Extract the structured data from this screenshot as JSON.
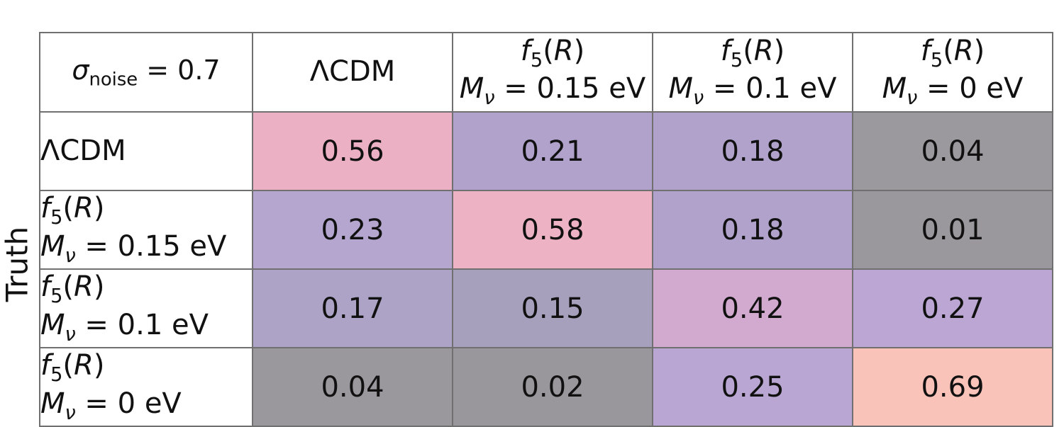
{
  "figure": {
    "truth_axis_label": "Truth",
    "border_color": "#707070",
    "text_color": "#111111",
    "background": "#ffffff"
  },
  "corner": {
    "lines": [
      [
        {
          "t": "σ",
          "i": true
        },
        {
          "t": "noise",
          "sub": true
        },
        {
          "t": " = 0.7"
        }
      ]
    ]
  },
  "columns": [
    {
      "id": "lcdm",
      "lines": [
        [
          {
            "t": "ΛCDM"
          }
        ]
      ]
    },
    {
      "id": "f5r-mnu-0.15ev",
      "lines": [
        [
          {
            "t": "f",
            "i": true
          },
          {
            "t": "5",
            "sub": true
          },
          {
            "t": "("
          },
          {
            "t": "R",
            "i": true
          },
          {
            "t": ")"
          }
        ],
        [
          {
            "t": "M",
            "i": true
          },
          {
            "t": "ν",
            "sub": true,
            "i": true
          },
          {
            "t": " = 0.15 eV"
          }
        ]
      ]
    },
    {
      "id": "f5r-mnu-0.1ev",
      "lines": [
        [
          {
            "t": "f",
            "i": true
          },
          {
            "t": "5",
            "sub": true
          },
          {
            "t": "("
          },
          {
            "t": "R",
            "i": true
          },
          {
            "t": ")"
          }
        ],
        [
          {
            "t": "M",
            "i": true
          },
          {
            "t": "ν",
            "sub": true,
            "i": true
          },
          {
            "t": " = 0.1 eV"
          }
        ]
      ]
    },
    {
      "id": "f5r-mnu-0ev",
      "lines": [
        [
          {
            "t": "f",
            "i": true
          },
          {
            "t": "5",
            "sub": true
          },
          {
            "t": "("
          },
          {
            "t": "R",
            "i": true
          },
          {
            "t": ")"
          }
        ],
        [
          {
            "t": "M",
            "i": true
          },
          {
            "t": "ν",
            "sub": true,
            "i": true
          },
          {
            "t": " = 0 eV"
          }
        ]
      ]
    }
  ],
  "rows": [
    {
      "label": {
        "lines": [
          [
            {
              "t": "ΛCDM"
            }
          ]
        ]
      },
      "cells": [
        {
          "value": "0.56",
          "bg": "#ecb0c4"
        },
        {
          "value": "0.21",
          "bg": "#b1a2cc"
        },
        {
          "value": "0.18",
          "bg": "#b0a2cb"
        },
        {
          "value": "0.04",
          "bg": "#9b989e"
        }
      ]
    },
    {
      "label": {
        "lines": [
          [
            {
              "t": "f",
              "i": true
            },
            {
              "t": "5",
              "sub": true
            },
            {
              "t": "("
            },
            {
              "t": "R",
              "i": true
            },
            {
              "t": ")"
            }
          ],
          [
            {
              "t": "M",
              "i": true
            },
            {
              "t": "ν",
              "sub": true,
              "i": true
            },
            {
              "t": " = 0.15 eV"
            }
          ]
        ]
      },
      "cells": [
        {
          "value": "0.23",
          "bg": "#b5a6cf"
        },
        {
          "value": "0.58",
          "bg": "#eeb2c5"
        },
        {
          "value": "0.18",
          "bg": "#b0a2cb"
        },
        {
          "value": "0.01",
          "bg": "#9a979d"
        }
      ]
    },
    {
      "label": {
        "lines": [
          [
            {
              "t": "f",
              "i": true
            },
            {
              "t": "5",
              "sub": true
            },
            {
              "t": "("
            },
            {
              "t": "R",
              "i": true
            },
            {
              "t": ")"
            }
          ],
          [
            {
              "t": "M",
              "i": true
            },
            {
              "t": "ν",
              "sub": true,
              "i": true
            },
            {
              "t": " = 0.1 eV"
            }
          ]
        ]
      },
      "cells": [
        {
          "value": "0.17",
          "bg": "#aca3c6"
        },
        {
          "value": "0.15",
          "bg": "#a6a0bc"
        },
        {
          "value": "0.42",
          "bg": "#d2a9cf"
        },
        {
          "value": "0.27",
          "bg": "#bca7d4"
        }
      ]
    },
    {
      "label": {
        "lines": [
          [
            {
              "t": "f",
              "i": true
            },
            {
              "t": "5",
              "sub": true
            },
            {
              "t": "("
            },
            {
              "t": "R",
              "i": true
            },
            {
              "t": ")"
            }
          ],
          [
            {
              "t": "M",
              "i": true
            },
            {
              "t": "ν",
              "sub": true,
              "i": true
            },
            {
              "t": " = 0 eV"
            }
          ]
        ]
      },
      "cells": [
        {
          "value": "0.04",
          "bg": "#9a979d"
        },
        {
          "value": "0.02",
          "bg": "#99969c"
        },
        {
          "value": "0.25",
          "bg": "#b9a6d2"
        },
        {
          "value": "0.69",
          "bg": "#fac3ba"
        }
      ]
    }
  ],
  "chart_data": {
    "type": "heatmap",
    "title": "σ_noise = 0.7",
    "x_categories": [
      "ΛCDM",
      "f5(R) Mν = 0.15 eV",
      "f5(R) Mν = 0.1 eV",
      "f5(R) Mν = 0 eV"
    ],
    "y_categories": [
      "ΛCDM",
      "f5(R) Mν = 0.15 eV",
      "f5(R) Mν = 0.1 eV",
      "f5(R) Mν = 0 eV"
    ],
    "xlabel": "",
    "ylabel": "Truth",
    "values": [
      [
        0.56,
        0.21,
        0.18,
        0.04
      ],
      [
        0.23,
        0.58,
        0.18,
        0.01
      ],
      [
        0.17,
        0.15,
        0.42,
        0.27
      ],
      [
        0.04,
        0.02,
        0.25,
        0.69
      ]
    ],
    "value_range": [
      0,
      1
    ],
    "legend": "none",
    "grid": "cell-borders"
  }
}
